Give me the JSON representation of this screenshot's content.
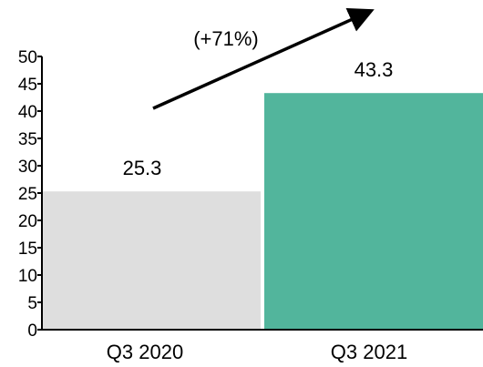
{
  "chart_data": {
    "type": "bar",
    "categories": [
      "Q3 2020",
      "Q3 2021"
    ],
    "values": [
      25.3,
      43.3
    ],
    "data_labels": [
      "25.3",
      "43.3"
    ],
    "bar_colors": [
      "#dedede",
      "#52b59c"
    ],
    "title": "",
    "xlabel": "",
    "ylabel": "",
    "ylim": [
      0,
      50
    ],
    "yticks": [
      0,
      5,
      10,
      15,
      20,
      25,
      30,
      35,
      40,
      45,
      50
    ],
    "grid": false,
    "legend": "none",
    "annotation": {
      "text": "(+71%)",
      "arrow": "up-right"
    }
  }
}
